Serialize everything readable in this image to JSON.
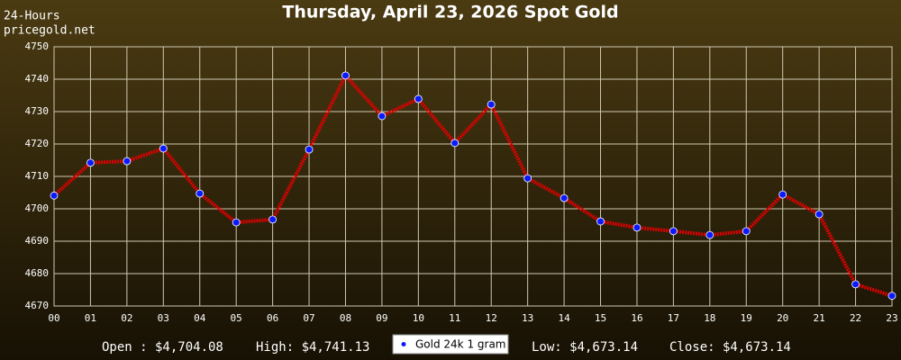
{
  "chart_data": {
    "type": "line",
    "title": "Thursday, April 23, 2026 Spot Gold",
    "corner_text": [
      "24-Hours",
      "pricegold.net"
    ],
    "categories": [
      "00",
      "01",
      "02",
      "03",
      "04",
      "05",
      "06",
      "07",
      "08",
      "09",
      "10",
      "11",
      "12",
      "13",
      "14",
      "15",
      "16",
      "17",
      "18",
      "19",
      "20",
      "21",
      "22",
      "23"
    ],
    "series": [
      {
        "name": "Gold 24k 1 gram",
        "color": "#e00000",
        "marker_color": "#0a1aff",
        "values": [
          4704.08,
          4714.2,
          4714.7,
          4718.6,
          4704.7,
          4695.8,
          4696.7,
          4718.3,
          4741.13,
          4728.6,
          4733.9,
          4720.3,
          4732.2,
          4709.4,
          4703.3,
          4696.1,
          4694.2,
          4693.1,
          4691.9,
          4693.1,
          4704.4,
          4698.3,
          4676.7,
          4673.14
        ]
      }
    ],
    "ylim": [
      4670,
      4750
    ],
    "yticks": [
      4670,
      4680,
      4690,
      4700,
      4710,
      4720,
      4730,
      4740,
      4750
    ],
    "grid": true,
    "legend": "bottom",
    "stats": [
      "Open : $4,704.08",
      "High: $4,741.13",
      "Low: $4,673.14",
      "Close: $4,673.14"
    ]
  }
}
